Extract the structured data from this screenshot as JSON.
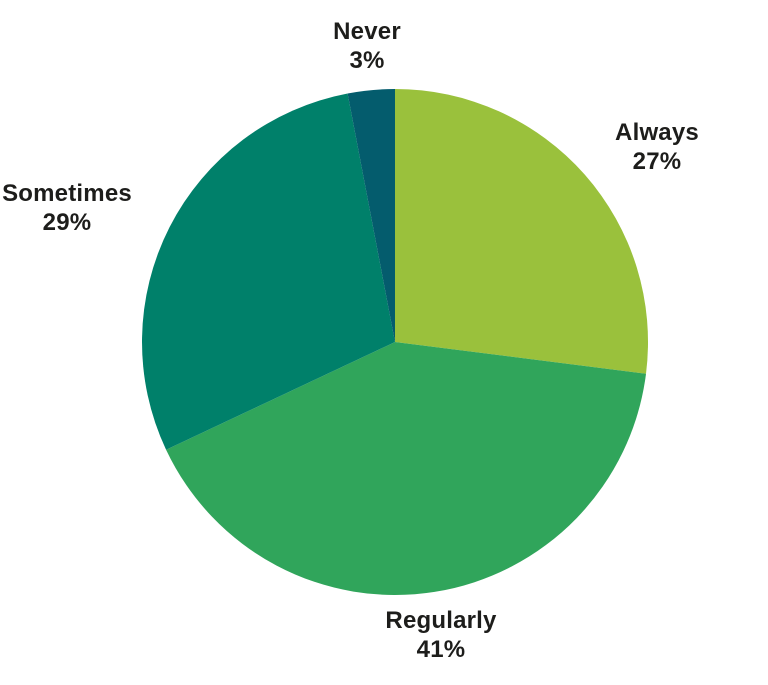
{
  "page": {
    "background_color": "#ffffff",
    "text_color": "#1d1d1b"
  },
  "chart_data": {
    "type": "pie",
    "title": "",
    "legend": "none",
    "labels_position": "outside",
    "direction": "clockwise",
    "start_angle_deg": 0,
    "unit": "%",
    "categories": [
      "Always",
      "Regularly",
      "Sometimes",
      "Never"
    ],
    "values": [
      27,
      41,
      29,
      3
    ],
    "slices": [
      {
        "label": "Always",
        "value": 27,
        "value_label": "27%",
        "color": "#9ac13c"
      },
      {
        "label": "Regularly",
        "value": 41,
        "value_label": "41%",
        "color": "#30a55b"
      },
      {
        "label": "Sometimes",
        "value": 29,
        "value_label": "29%",
        "color": "#00806a"
      },
      {
        "label": "Never",
        "value": 3,
        "value_label": "3%",
        "color": "#045c6d"
      }
    ]
  }
}
